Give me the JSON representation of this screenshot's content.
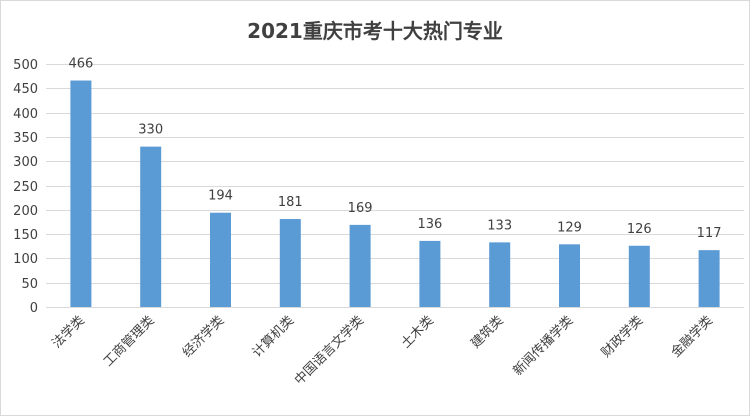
{
  "chart_data": {
    "type": "bar",
    "title": "2021重庆市考十大热门专业",
    "categories": [
      "法学类",
      "工商管理类",
      "经济学类",
      "计算机类",
      "中国语言文学类",
      "土木类",
      "建筑类",
      "新闻传播学类",
      "财政学类",
      "金融学类"
    ],
    "values": [
      466,
      330,
      194,
      181,
      169,
      136,
      133,
      129,
      126,
      117
    ],
    "ylim": [
      0,
      500
    ],
    "yticks": [
      0,
      50,
      100,
      150,
      200,
      250,
      300,
      350,
      400,
      450,
      500
    ],
    "grid": true,
    "bar_color": "#5b9bd5",
    "grid_color": "#d9d9d9",
    "xlabel": "",
    "ylabel": ""
  }
}
